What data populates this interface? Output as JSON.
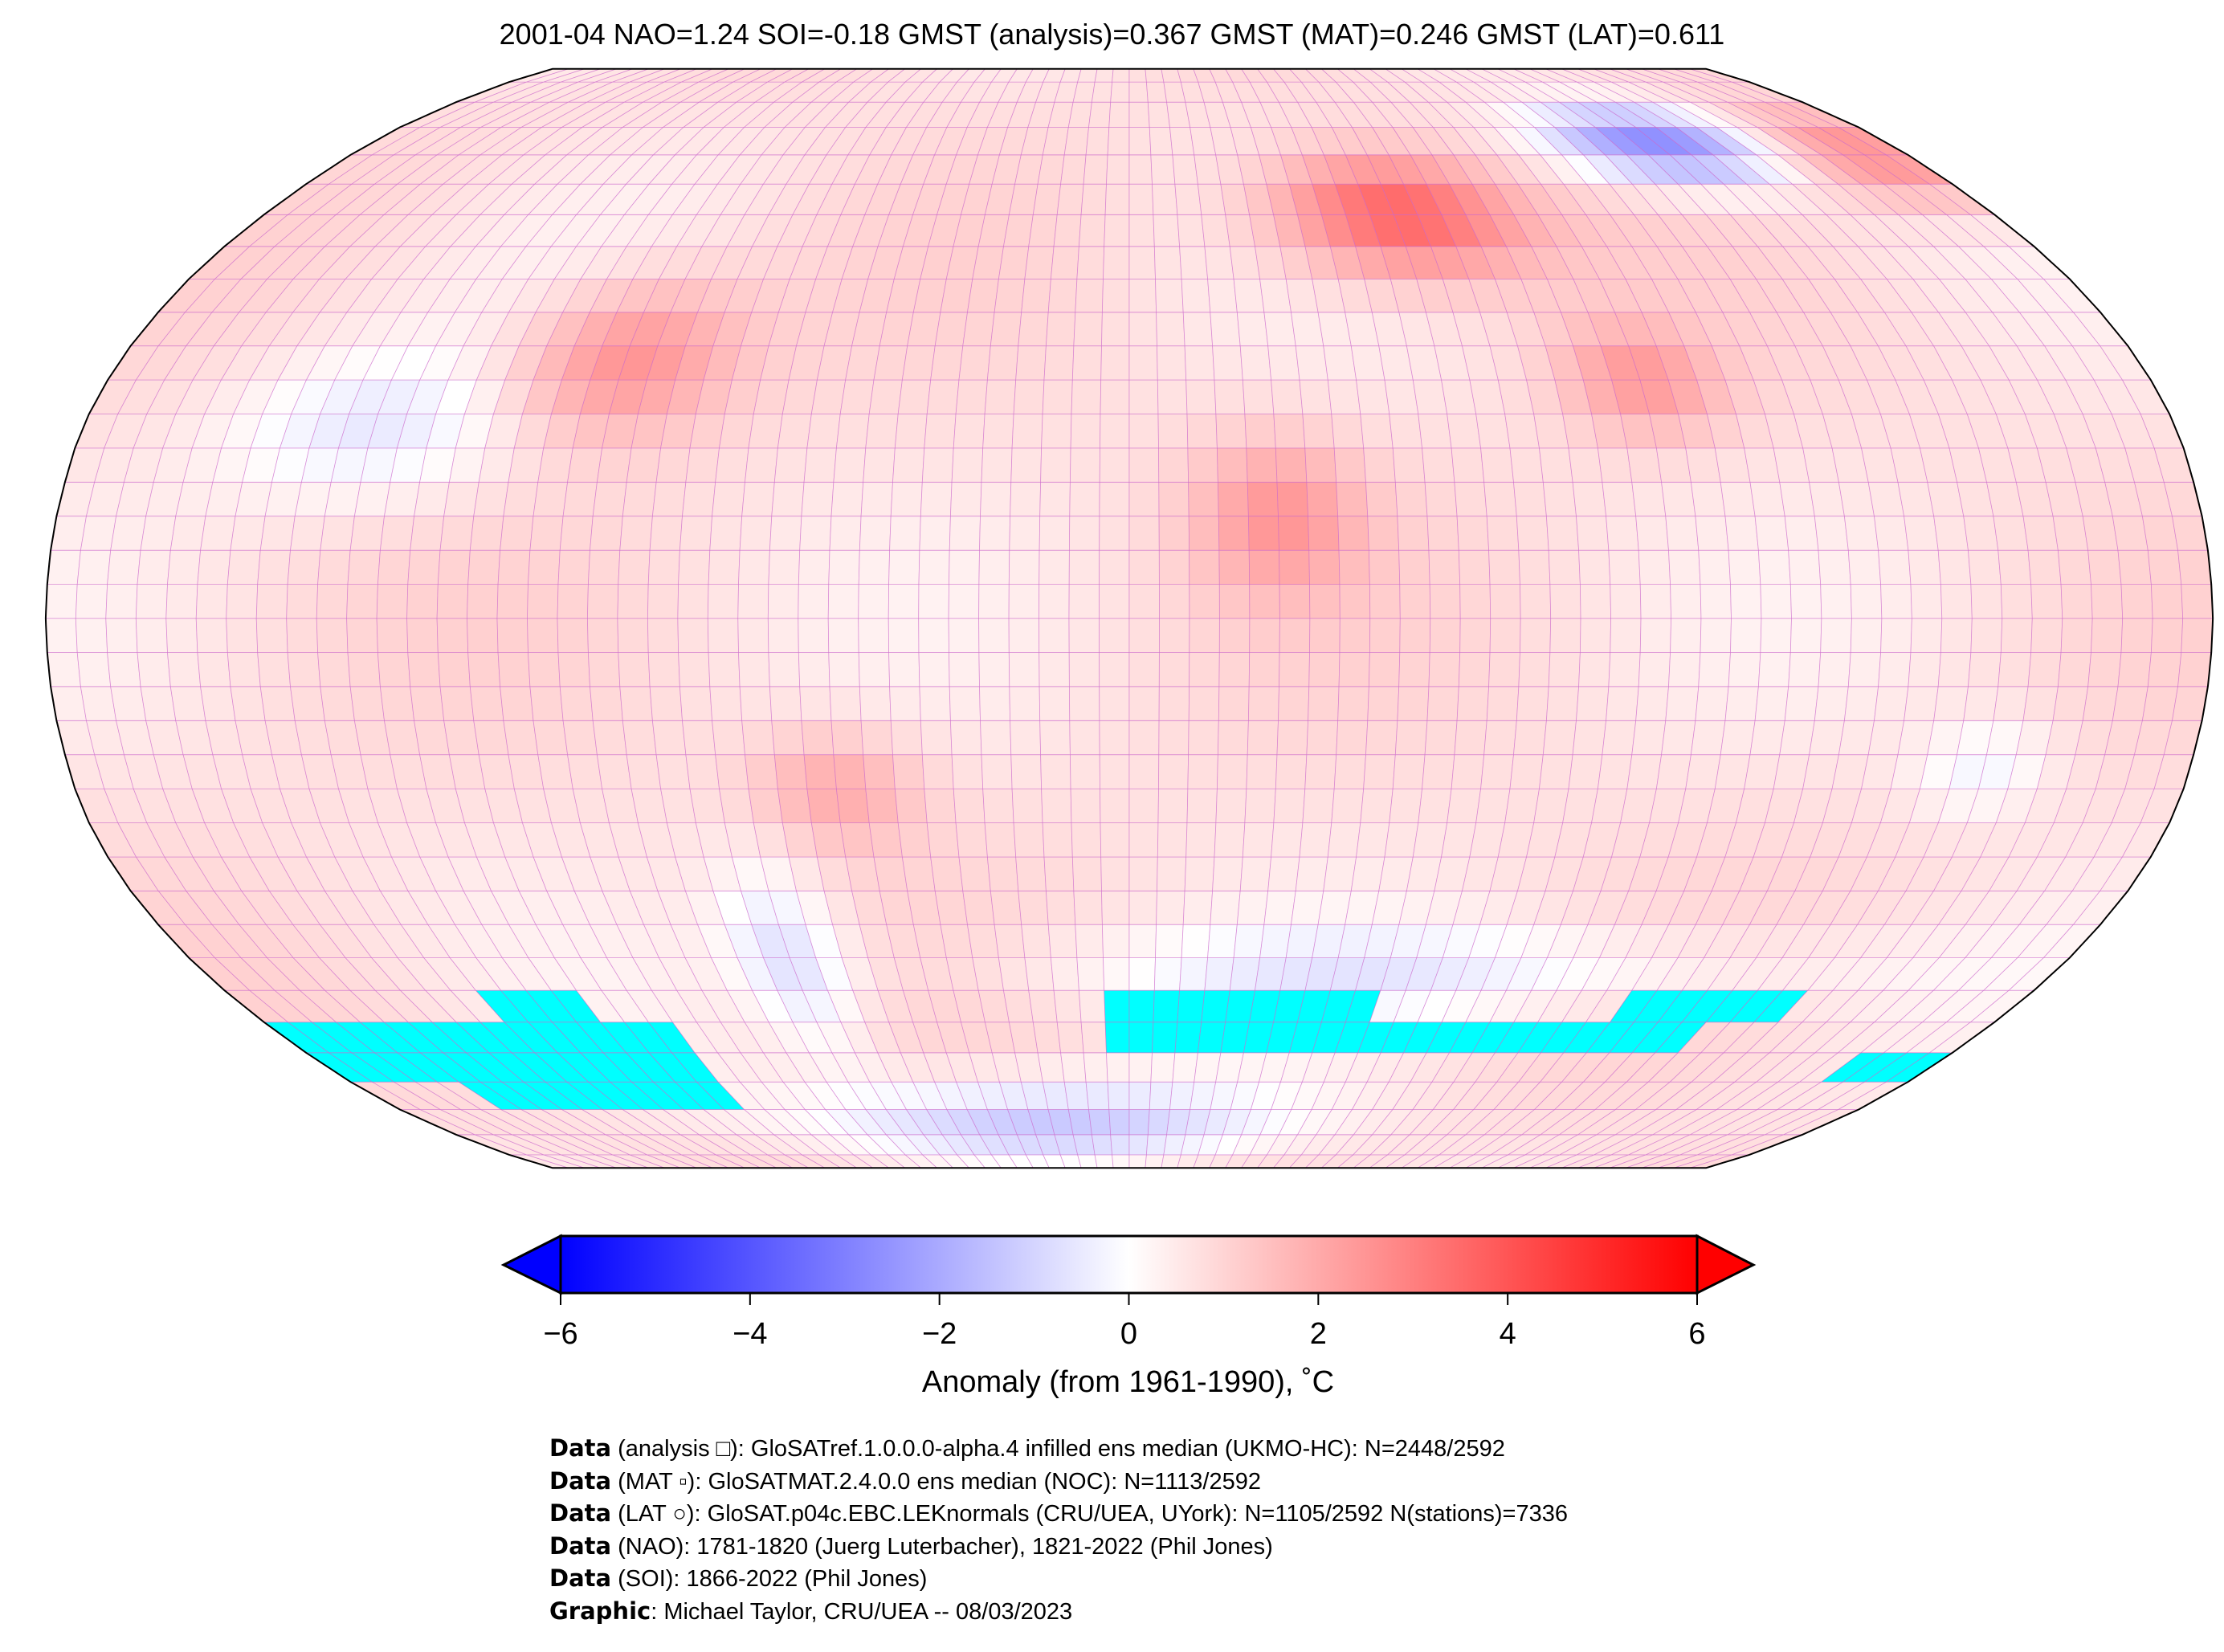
{
  "chart_data": {
    "type": "heatmap",
    "title": "2001-04 NAO=1.24 SOI=-0.18 GMST (analysis)=0.367 GMST (MAT)=0.246 GMST (LAT)=0.611",
    "projection": "Robinson",
    "grid_resolution_deg": 5,
    "colorbar": {
      "label": "Anomaly (from 1961-1990), ˚C",
      "range": [
        -6,
        6
      ],
      "ticks": [
        "−6",
        "−4",
        "−2",
        "0",
        "2",
        "4",
        "6"
      ],
      "colors": {
        "min": "#0000ff",
        "mid": "#ffffff",
        "max": "#ff0000"
      },
      "extend": "both"
    },
    "missing_color": "#00ffff",
    "grid_line_color": "#cc66cc"
  },
  "footer": [
    {
      "bold": "Data",
      "text": " (analysis □): GloSATref.1.0.0.0-alpha.4 infilled ens median (UKMO-HC): N=2448/2592"
    },
    {
      "bold": "Data",
      "text": " (MAT ▫): GloSATMAT.2.4.0.0 ens median (NOC): N=1113/2592"
    },
    {
      "bold": "Data",
      "text": " (LAT ○): GloSAT.p04c.EBC.LEKnormals (CRU/UEA, UYork): N=1105/2592 N(stations)=7336"
    },
    {
      "bold": "Data",
      "text": " (NAO): 1781-1820 (Juerg Luterbacher), 1821-2022 (Phil Jones)"
    },
    {
      "bold": "Data",
      "text": " (SOI): 1866-2022 (Phil Jones)"
    },
    {
      "bold": "Graphic",
      "text": ": Michael Taylor, CRU/UEA -- 08/03/2023"
    }
  ]
}
